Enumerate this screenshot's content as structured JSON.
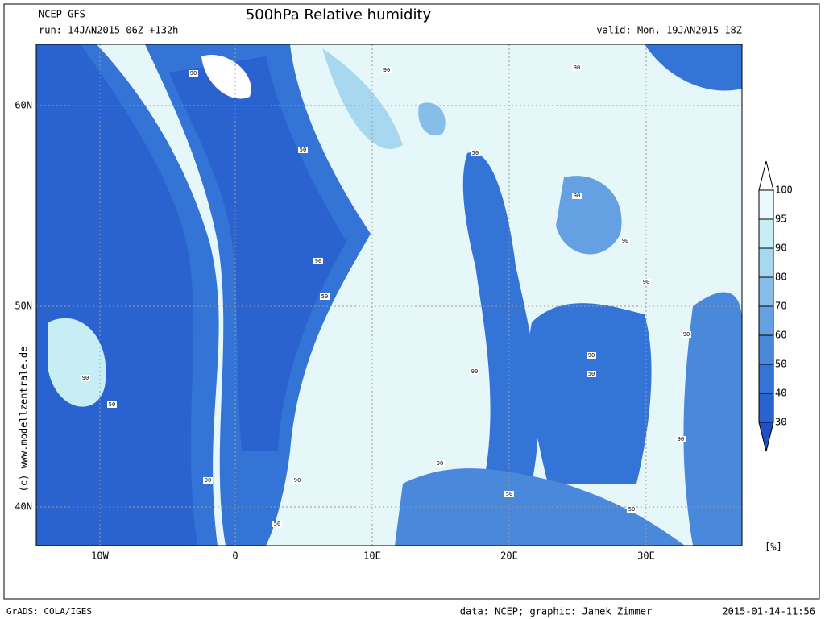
{
  "header": {
    "model": "NCEP GFS",
    "run": "run: 14JAN2015 06Z +132h",
    "title": "500hPa Relative humidity",
    "valid": "valid: Mon, 19JAN2015 18Z"
  },
  "map": {
    "lat_labels": [
      "60N",
      "50N",
      "40N"
    ],
    "lon_labels": [
      "10W",
      "0",
      "10E",
      "20E",
      "30E"
    ],
    "contour_labels": [
      "90",
      "90",
      "90",
      "50",
      "50",
      "90",
      "90",
      "90",
      "90",
      "50",
      "90",
      "90",
      "50",
      "90",
      "90",
      "50",
      "90",
      "90",
      "90",
      "90",
      "50",
      "50",
      "50"
    ]
  },
  "colorbar": {
    "labels": [
      "100",
      "95",
      "90",
      "80",
      "70",
      "60",
      "50",
      "40",
      "30"
    ],
    "unit": "[%]"
  },
  "copyright": "(c)  www.modellzentrale.de",
  "footer": {
    "left": "GrADS: COLA/IGES",
    "center": "data: NCEP; graphic: Janek Zimmer",
    "right": "2015-01-14-11:56"
  }
}
